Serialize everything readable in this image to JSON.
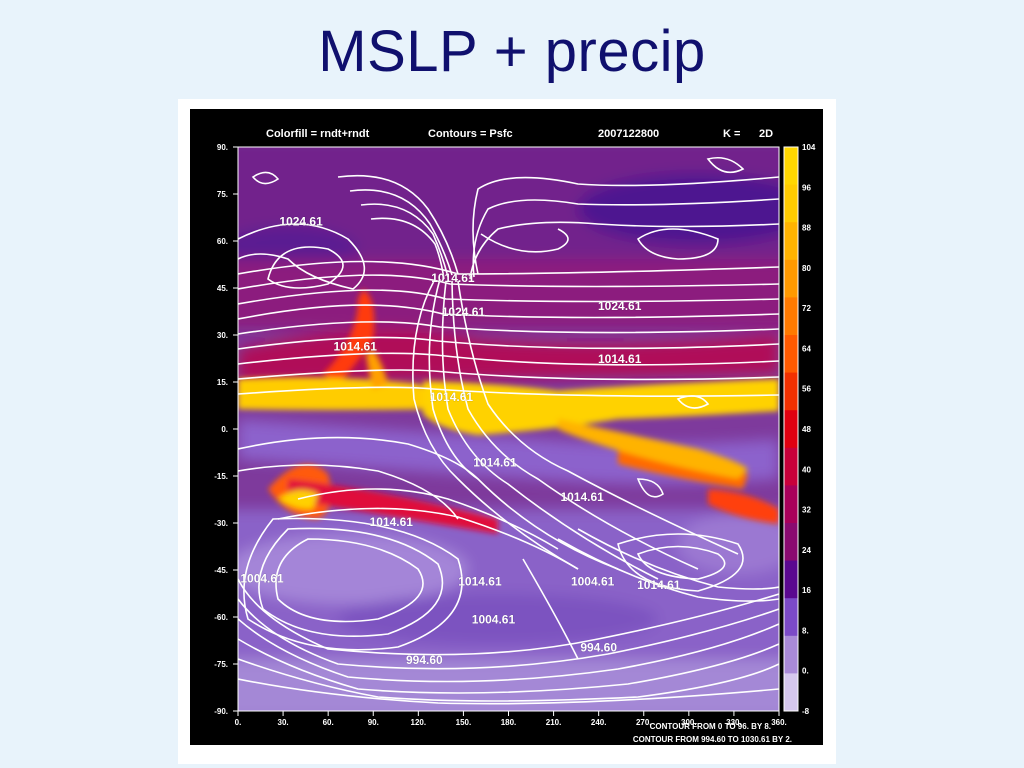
{
  "slide": {
    "title": "MSLP + precip"
  },
  "chart_data": {
    "type": "heatmap",
    "header": {
      "colorfill_label": "Colorfill = rndt+rndt",
      "contours_label": "Contours = Psfc",
      "timestamp": "2007122800",
      "level_label": "K =",
      "level_value": "2D"
    },
    "x_ticks": [
      "0.",
      "30.",
      "60.",
      "90.",
      "120.",
      "150.",
      "180.",
      "210.",
      "240.",
      "270.",
      "300.",
      "330.",
      "360."
    ],
    "y_ticks": [
      "90.",
      "75.",
      "60.",
      "45.",
      "30.",
      "15.",
      "0.",
      "-15.",
      "-30.",
      "-45.",
      "-60.",
      "-75.",
      "-90."
    ],
    "xlim": [
      0,
      360
    ],
    "ylim": [
      -90,
      90
    ],
    "colorbar": {
      "labels": [
        "104",
        "96",
        "88",
        "80",
        "72",
        "64",
        "56",
        "48",
        "40",
        "32",
        "24",
        "16",
        "8.",
        "0.",
        "-8"
      ],
      "colors": [
        "#ffd700",
        "#ffcc00",
        "#ffb300",
        "#ff9900",
        "#ff7a00",
        "#ff5a00",
        "#f23000",
        "#e00010",
        "#c8003a",
        "#a8005a",
        "#8a0a70",
        "#5a0890",
        "#7b4ac8",
        "#a98ad8",
        "#d6c8ee"
      ]
    },
    "contour_labels": [
      {
        "text": "1024.61",
        "lon": 42,
        "lat": 66
      },
      {
        "text": "1014.61",
        "lon": 143,
        "lat": 48
      },
      {
        "text": "1024.61",
        "lon": 150,
        "lat": 37
      },
      {
        "text": "1024.61",
        "lon": 254,
        "lat": 39
      },
      {
        "text": "1014.61",
        "lon": 78,
        "lat": 26
      },
      {
        "text": "1014.61",
        "lon": 254,
        "lat": 22
      },
      {
        "text": "1014.61",
        "lon": 142,
        "lat": 10
      },
      {
        "text": "1014.61",
        "lon": 171,
        "lat": -11
      },
      {
        "text": "1014.61",
        "lon": 229,
        "lat": -22
      },
      {
        "text": "1014.61",
        "lon": 102,
        "lat": -30
      },
      {
        "text": "1004.61",
        "lon": 16,
        "lat": -48
      },
      {
        "text": "1014.61",
        "lon": 161,
        "lat": -49
      },
      {
        "text": "1004.61",
        "lon": 236,
        "lat": -49
      },
      {
        "text": "1014.61",
        "lon": 280,
        "lat": -50
      },
      {
        "text": "1004.61",
        "lon": 170,
        "lat": -61
      },
      {
        "text": "994.60",
        "lon": 240,
        "lat": -70
      },
      {
        "text": "994.60",
        "lon": 124,
        "lat": -74
      }
    ],
    "footer": [
      "CONTOUR FROM 0 TO 96. BY 8.",
      "CONTOUR FROM 994.60 TO 1030.61 BY 2."
    ]
  }
}
